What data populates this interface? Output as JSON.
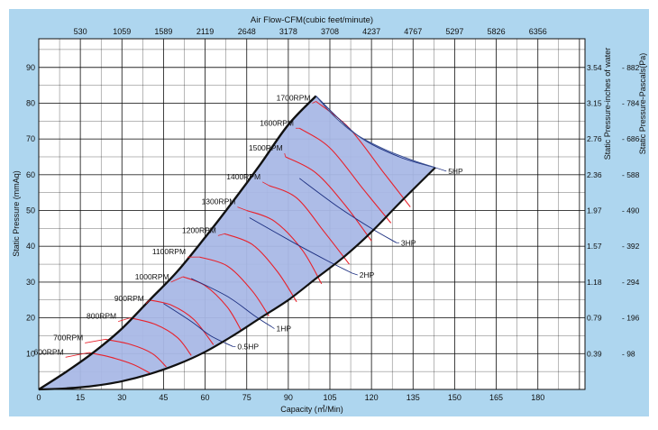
{
  "chart_data": {
    "type": "line",
    "title": "",
    "top_axis": {
      "label": "Air Flow-CFM(cubic feet/minute)",
      "ticks": [
        "530",
        "1059",
        "1589",
        "2119",
        "2648",
        "3178",
        "3708",
        "4237",
        "4767",
        "5297",
        "5826",
        "6356"
      ],
      "positions": [
        15,
        30,
        45,
        60,
        75,
        90,
        105,
        120,
        135,
        150,
        165,
        180
      ]
    },
    "bottom_axis": {
      "label": "Capacity (㎥/Min)",
      "ticks": [
        "0",
        "15",
        "30",
        "45",
        "60",
        "75",
        "90",
        "105",
        "120",
        "135",
        "150",
        "165",
        "180"
      ],
      "values": [
        0,
        15,
        30,
        45,
        60,
        75,
        90,
        105,
        120,
        135,
        150,
        165,
        180
      ],
      "xlim": [
        0,
        197
      ]
    },
    "left_axis": {
      "label": "Static Pressure (mmAq)",
      "ticks": [
        "10",
        "20",
        "30",
        "40",
        "50",
        "60",
        "70",
        "80",
        "90"
      ],
      "values": [
        10,
        20,
        30,
        40,
        50,
        60,
        70,
        80,
        90
      ],
      "ylim": [
        0,
        98
      ]
    },
    "right_axis_inches": {
      "label": "Static Pressure-inches of water",
      "ticks": [
        "0.39",
        "0.79",
        "1.18",
        "1.57",
        "1.97",
        "2.36",
        "2.76",
        "3.15",
        "3.54"
      ],
      "positions": [
        10,
        20,
        30,
        40,
        50,
        60,
        70,
        80,
        90
      ]
    },
    "right_axis_pascals": {
      "label": "Static Pressure-Pascals(Pa)",
      "ticks": [
        "98",
        "196",
        "294",
        "392",
        "490",
        "588",
        "686",
        "784",
        "882"
      ],
      "positions": [
        10,
        20,
        30,
        40,
        50,
        60,
        70,
        80,
        90
      ]
    },
    "grid": true,
    "envelope": {
      "upper": [
        [
          0,
          0
        ],
        [
          10,
          5
        ],
        [
          20,
          10.5
        ],
        [
          30,
          17
        ],
        [
          40,
          25
        ],
        [
          50,
          33
        ],
        [
          60,
          42.5
        ],
        [
          70,
          52.5
        ],
        [
          80,
          63
        ],
        [
          90,
          74
        ],
        [
          100,
          82
        ]
      ],
      "top_edge": [
        [
          100,
          82
        ],
        [
          107,
          76
        ],
        [
          115,
          71
        ],
        [
          125,
          67
        ],
        [
          135,
          64
        ],
        [
          143,
          62
        ]
      ],
      "lower": [
        [
          143,
          62
        ],
        [
          130,
          52
        ],
        [
          120,
          44
        ],
        [
          110,
          37
        ],
        [
          100,
          31
        ],
        [
          90,
          25
        ],
        [
          80,
          20
        ],
        [
          70,
          15
        ],
        [
          60,
          10.5
        ],
        [
          50,
          7
        ],
        [
          40,
          4.3
        ],
        [
          30,
          2.3
        ],
        [
          20,
          1
        ],
        [
          10,
          0.3
        ],
        [
          0,
          0
        ]
      ],
      "fill_color": "#a9b8e6",
      "edge_color": "#111111"
    },
    "rpm_series": [
      {
        "name": "600RPM",
        "label_at": [
          9,
          10
        ],
        "points": [
          [
            18,
            10.3
          ],
          [
            26,
            9
          ],
          [
            34,
            7
          ],
          [
            40,
            4.6
          ]
        ]
      },
      {
        "name": "700RPM",
        "label_at": [
          16,
          14
        ],
        "points": [
          [
            24,
            14
          ],
          [
            33,
            12.6
          ],
          [
            41,
            10
          ],
          [
            46,
            6.3
          ]
        ]
      },
      {
        "name": "800RPM",
        "label_at": [
          28,
          20
        ],
        "points": [
          [
            33,
            20
          ],
          [
            42,
            18.2
          ],
          [
            50,
            14.5
          ],
          [
            55,
            9.5
          ]
        ]
      },
      {
        "name": "900RPM",
        "label_at": [
          38,
          25
        ],
        "points": [
          [
            40,
            25
          ],
          [
            48,
            23.5
          ],
          [
            56,
            19.5
          ],
          [
            63,
            12.5
          ]
        ]
      },
      {
        "name": "1000RPM",
        "label_at": [
          47,
          31
        ],
        "points": [
          [
            52,
            31.5
          ],
          [
            60,
            29
          ],
          [
            68,
            23
          ],
          [
            73,
            16.5
          ]
        ]
      },
      {
        "name": "1100RPM",
        "label_at": [
          53,
          38
        ],
        "points": [
          [
            58,
            37
          ],
          [
            68,
            34.5
          ],
          [
            77,
            27.5
          ],
          [
            83,
            20.5
          ]
        ]
      },
      {
        "name": "1200RPM",
        "label_at": [
          64,
          44
        ],
        "points": [
          [
            67,
            43.5
          ],
          [
            77,
            40.5
          ],
          [
            86,
            33
          ],
          [
            93,
            24.5
          ]
        ]
      },
      {
        "name": "1300RPM",
        "label_at": [
          71,
          52
        ],
        "points": [
          [
            75,
            50
          ],
          [
            85,
            47
          ],
          [
            95,
            39
          ],
          [
            102,
            29.5
          ]
        ]
      },
      {
        "name": "1400RPM",
        "label_at": [
          80,
          59
        ],
        "points": [
          [
            83,
            57
          ],
          [
            93,
            53.5
          ],
          [
            103,
            44
          ],
          [
            112,
            35
          ]
        ]
      },
      {
        "name": "1500RPM",
        "label_at": [
          88,
          67
        ],
        "points": [
          [
            89,
            65
          ],
          [
            100,
            60.5
          ],
          [
            111,
            51
          ],
          [
            120,
            41.5
          ]
        ]
      },
      {
        "name": "1600RPM",
        "label_at": [
          92,
          74
        ],
        "points": [
          [
            94,
            73
          ],
          [
            105,
            67.5
          ],
          [
            117,
            56
          ],
          [
            127,
            46.5
          ]
        ]
      },
      {
        "name": "1700RPM",
        "label_at": [
          98,
          81
        ],
        "points": [
          [
            100,
            80.5
          ],
          [
            112,
            73
          ],
          [
            124,
            61
          ],
          [
            134,
            51
          ]
        ]
      }
    ],
    "hp_series": [
      {
        "name": "0.5HP",
        "label_at": [
          71,
          12
        ],
        "points": [
          [
            45,
            24
          ],
          [
            55,
            19
          ],
          [
            62,
            15
          ],
          [
            70,
            12
          ]
        ]
      },
      {
        "name": "1HP",
        "label_at": [
          85,
          17
        ],
        "points": [
          [
            55,
            31
          ],
          [
            68,
            26
          ],
          [
            78,
            20.5
          ],
          [
            84,
            17.5
          ]
        ]
      },
      {
        "name": "2HP",
        "label_at": [
          115,
          32
        ],
        "points": [
          [
            76,
            48
          ],
          [
            92,
            41
          ],
          [
            104,
            36
          ],
          [
            113,
            32.5
          ]
        ]
      },
      {
        "name": "3HP",
        "label_at": [
          130,
          41
        ],
        "points": [
          [
            94,
            59
          ],
          [
            108,
            51
          ],
          [
            120,
            45
          ],
          [
            129,
            41
          ]
        ]
      },
      {
        "name": "5HP",
        "label_at": [
          147,
          61
        ],
        "points": [
          [
            100,
            82
          ],
          [
            115,
            71
          ],
          [
            130,
            65
          ],
          [
            143,
            62
          ]
        ]
      }
    ],
    "colors": {
      "rpm_curve": "#e8212b",
      "hp_curve": "#1c2f80",
      "axis_band": "#aed6ef",
      "plot_background": "#ffffff",
      "grid": "#111111",
      "leader_line": "#e8212b"
    }
  }
}
